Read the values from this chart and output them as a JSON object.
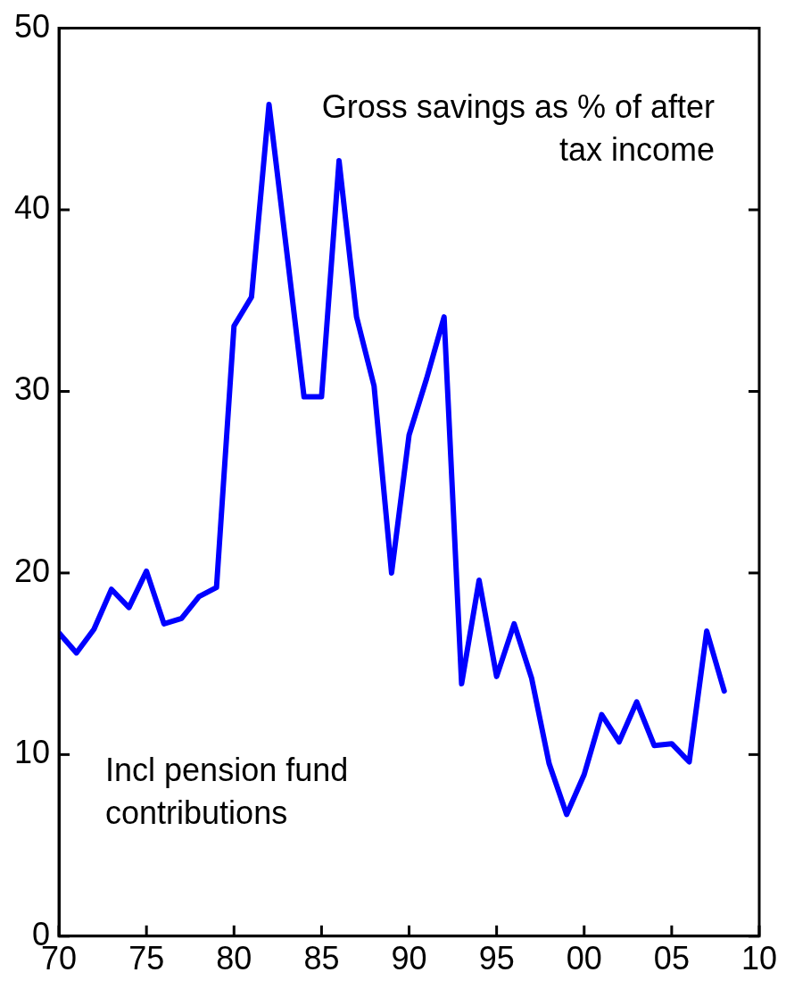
{
  "chart_data": {
    "type": "line",
    "x": [
      1970,
      1971,
      1972,
      1973,
      1974,
      1975,
      1976,
      1977,
      1978,
      1979,
      1980,
      1981,
      1982,
      1983,
      1984,
      1985,
      1986,
      1987,
      1988,
      1989,
      1990,
      1991,
      1992,
      1993,
      1994,
      1995,
      1996,
      1997,
      1998,
      1999,
      2000,
      2001,
      2002,
      2003,
      2004,
      2005,
      2006,
      2007,
      2008
    ],
    "series": [
      {
        "color": "#0000ff",
        "values": [
          16.7,
          15.6,
          16.9,
          19.1,
          18.1,
          20.1,
          17.2,
          17.5,
          18.7,
          19.2,
          33.6,
          35.2,
          45.8,
          37.8,
          29.7,
          29.7,
          42.7,
          34.1,
          30.3,
          20.0,
          27.6,
          30.7,
          34.1,
          13.9,
          19.6,
          14.3,
          17.2,
          14.2,
          9.5,
          6.7,
          8.9,
          12.2,
          10.7,
          12.9,
          10.5,
          10.6,
          9.6,
          16.8,
          13.5
        ]
      }
    ],
    "xlim": [
      1970,
      2010
    ],
    "xticks": [
      {
        "value": 1970,
        "label": "70"
      },
      {
        "value": 1975,
        "label": "75"
      },
      {
        "value": 1980,
        "label": "80"
      },
      {
        "value": 1985,
        "label": "85"
      },
      {
        "value": 1990,
        "label": "90"
      },
      {
        "value": 1995,
        "label": "95"
      },
      {
        "value": 2000,
        "label": "00"
      },
      {
        "value": 2005,
        "label": "05"
      },
      {
        "value": 2010,
        "label": "10"
      }
    ],
    "ylim": [
      0,
      50
    ],
    "yticks": [
      0,
      10,
      20,
      30,
      40,
      50
    ],
    "annotations": [
      "Gross savings as % of after tax income",
      "Incl pension fund contributions"
    ],
    "grid": false,
    "legend": false,
    "marker": "none",
    "line_style": "solid"
  }
}
